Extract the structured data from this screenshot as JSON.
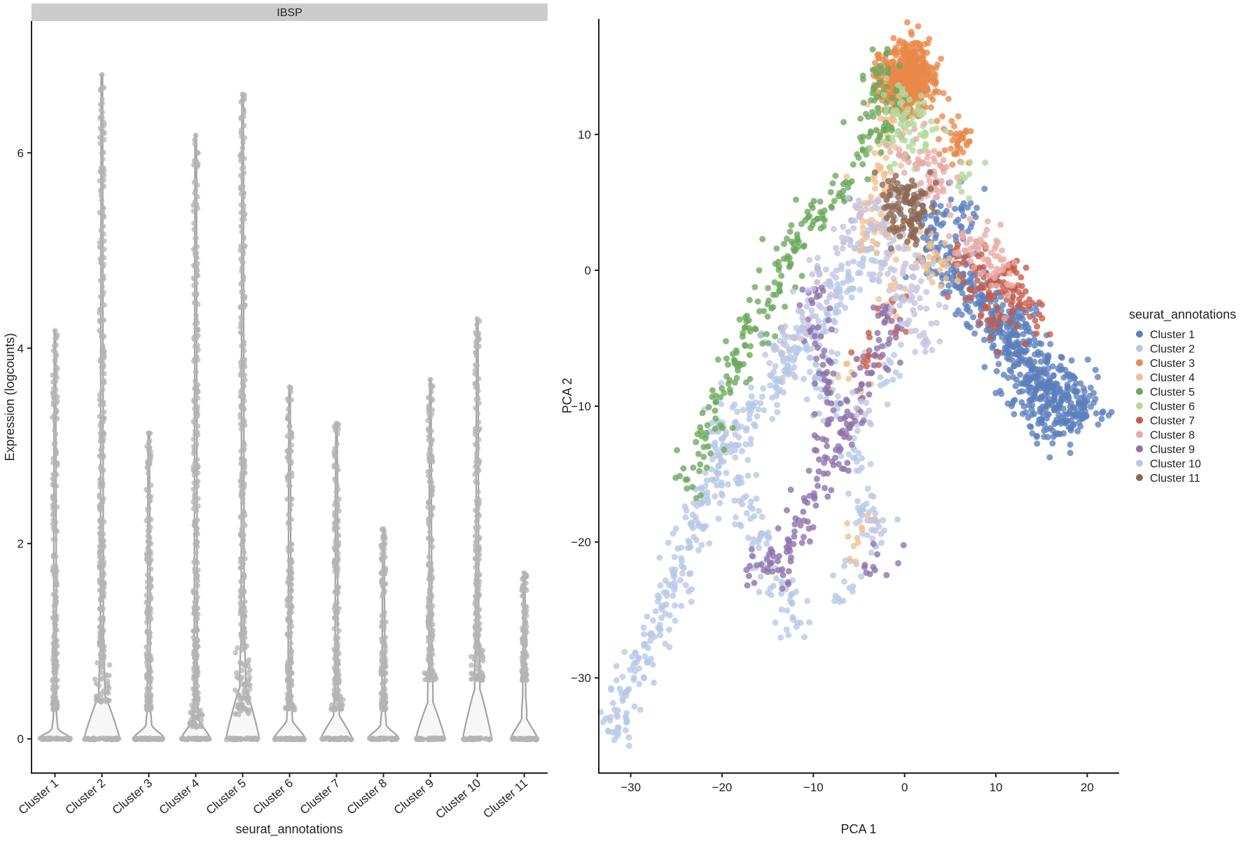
{
  "colors": {
    "violin_fill": "#f7f7f7",
    "violin_stroke": "#a3a3a3",
    "violin_points": "#b4b4b4",
    "strip_bg": "#cccccc"
  },
  "chart_data": [
    {
      "type": "violin",
      "facet_label": "IBSP",
      "xlabel": "seurat_annotations",
      "ylabel": "Expression (logcounts)",
      "ylim": [
        -0.35,
        7.35
      ],
      "yticks": [
        0,
        2,
        4,
        6
      ],
      "categories": [
        "Cluster 1",
        "Cluster 2",
        "Cluster 3",
        "Cluster 4",
        "Cluster 5",
        "Cluster 6",
        "Cluster 7",
        "Cluster 8",
        "Cluster 9",
        "Cluster 10",
        "Cluster 11"
      ],
      "max_values": [
        4.18,
        6.8,
        3.13,
        6.18,
        6.6,
        3.6,
        3.23,
        2.15,
        3.68,
        4.3,
        1.7
      ],
      "min_nonzero": [
        0.3,
        0.38,
        0.3,
        0.12,
        0.25,
        0.3,
        0.3,
        0.3,
        0.6,
        0.6,
        0.6
      ],
      "violin_top": [
        0.2,
        0.8,
        0.26,
        0.36,
        0.95,
        0.34,
        0.44,
        0.26,
        0.68,
        0.92,
        0.38
      ],
      "relative_width": [
        0.7,
        0.8,
        0.7,
        0.65,
        0.75,
        0.7,
        0.7,
        0.7,
        0.65,
        0.65,
        0.6
      ],
      "grid": false,
      "legend": "none"
    },
    {
      "type": "scatter",
      "xlabel": "PCA 1",
      "ylabel": "PCA 2",
      "xlim": [
        -33.5,
        23.5
      ],
      "ylim": [
        -37,
        18.5
      ],
      "xticks": [
        -30,
        -20,
        -10,
        0,
        10,
        20
      ],
      "yticks": [
        -30,
        -20,
        -10,
        0,
        10
      ],
      "tick_labels_x": [
        "−30",
        "−20",
        "−10",
        "0",
        "10",
        "20"
      ],
      "tick_labels_y": [
        "−30",
        "−20",
        "−10",
        "0",
        "10"
      ],
      "grid": false,
      "legend_title": "seurat_annotations",
      "legend_position": "right",
      "series": [
        {
          "name": "Cluster 1",
          "color": "#5b7fbd",
          "points": [
            [
              12.4,
              -6.2
            ],
            [
              13.6,
              -7.0
            ],
            [
              14.7,
              -7.6
            ],
            [
              15.8,
              -8.3
            ],
            [
              16.9,
              -8.8
            ],
            [
              18.0,
              -9.4
            ],
            [
              19.1,
              -9.9
            ],
            [
              10.8,
              -4.6
            ],
            [
              9.6,
              -3.6
            ],
            [
              8.4,
              -2.5
            ],
            [
              7.1,
              -1.4
            ],
            [
              11.5,
              -5.5
            ],
            [
              14.2,
              -9.1
            ],
            [
              16.4,
              -10.3
            ],
            [
              19.8,
              -10.4
            ],
            [
              17.6,
              -11.2
            ],
            [
              15.1,
              -10.5
            ],
            [
              12.9,
              -8.9
            ],
            [
              13.0,
              -4.7
            ],
            [
              11.8,
              -3.6
            ],
            [
              6.0,
              -0.7
            ],
            [
              4.8,
              0.5
            ],
            [
              3.6,
              1.4
            ],
            [
              2.2,
              3.8
            ],
            [
              6.3,
              4.4
            ]
          ]
        },
        {
          "name": "Cluster 2",
          "color": "#b7c8e5",
          "points": [
            [
              -4.0,
              1.5
            ],
            [
              -5.1,
              -0.2
            ],
            [
              -6.3,
              -1.6
            ],
            [
              -7.6,
              -2.9
            ],
            [
              -8.9,
              -4.1
            ],
            [
              -10.1,
              -4.9
            ],
            [
              -11.5,
              -5.8
            ],
            [
              -12.8,
              -7.0
            ],
            [
              -14.2,
              -8.1
            ],
            [
              -15.6,
              -9.3
            ],
            [
              -16.8,
              -10.3
            ],
            [
              -17.9,
              -11.5
            ],
            [
              -19.0,
              -12.8
            ],
            [
              -20.1,
              -14.0
            ],
            [
              -21.1,
              -15.4
            ],
            [
              -22.0,
              -16.9
            ],
            [
              -22.9,
              -18.4
            ],
            [
              -23.7,
              -19.9
            ],
            [
              -24.4,
              -21.4
            ],
            [
              -25.2,
              -23.0
            ],
            [
              -26.1,
              -24.6
            ],
            [
              -27.0,
              -26.3
            ],
            [
              -28.1,
              -27.8
            ],
            [
              -29.1,
              -29.3
            ],
            [
              -30.2,
              -30.8
            ],
            [
              -31.4,
              -32.4
            ],
            [
              -32.0,
              -34.0
            ],
            [
              -18.2,
              -15.2
            ],
            [
              -16.9,
              -17.4
            ],
            [
              -15.8,
              -19.6
            ],
            [
              -14.7,
              -21.7
            ],
            [
              -13.5,
              -23.8
            ],
            [
              -12.2,
              -25.7
            ],
            [
              -20.5,
              -11.2
            ],
            [
              -13.2,
              -5.2
            ],
            [
              -9.7,
              -7.8
            ],
            [
              -8.6,
              -9.5
            ],
            [
              -6.6,
              -22.9
            ],
            [
              -5.4,
              -13.8
            ],
            [
              -3.9,
              -17.8
            ],
            [
              -3.6,
              -19.1
            ],
            [
              -1.5,
              -6.8
            ]
          ]
        },
        {
          "name": "Cluster 3",
          "color": "#e8894a",
          "points": [
            [
              0.2,
              14.2
            ],
            [
              -1.2,
              13.8
            ],
            [
              1.4,
              13.5
            ],
            [
              -0.6,
              15.1
            ],
            [
              0.8,
              15.4
            ],
            [
              -1.8,
              14.6
            ],
            [
              1.9,
              14.8
            ],
            [
              -0.2,
              12.9
            ],
            [
              1.1,
              12.6
            ],
            [
              -1.4,
              12.9
            ],
            [
              0.3,
              15.9
            ],
            [
              2.4,
              13.9
            ],
            [
              5.8,
              9.5
            ]
          ]
        },
        {
          "name": "Cluster 4",
          "color": "#f1c08f",
          "points": [
            [
              -2.6,
              7.6
            ],
            [
              -1.1,
              6.1
            ],
            [
              -3.7,
              5.1
            ],
            [
              -2.1,
              3.8
            ],
            [
              -4.6,
              3.6
            ],
            [
              -0.2,
              2.6
            ],
            [
              -3.0,
              1.9
            ],
            [
              1.6,
              1.1
            ],
            [
              3.2,
              0.7
            ],
            [
              4.6,
              0.3
            ],
            [
              -2.2,
              9.4
            ],
            [
              -1.3,
              11.3
            ],
            [
              -5.8,
              -7.5
            ],
            [
              -5.2,
              -19.7
            ],
            [
              -1.5,
              -2.2
            ]
          ]
        },
        {
          "name": "Cluster 5",
          "color": "#6aa85a",
          "points": [
            [
              -2.5,
              14.8
            ],
            [
              -3.4,
              13.3
            ],
            [
              -2.9,
              11.6
            ],
            [
              -3.7,
              10.1
            ],
            [
              -4.6,
              8.9
            ],
            [
              -6.2,
              6.1
            ],
            [
              -7.7,
              5.1
            ],
            [
              -9.0,
              4.1
            ],
            [
              -10.3,
              3.1
            ],
            [
              -11.6,
              2.1
            ],
            [
              -12.6,
              0.9
            ],
            [
              -13.5,
              -0.4
            ],
            [
              -14.4,
              -1.8
            ],
            [
              -15.4,
              -3.0
            ],
            [
              -16.4,
              -4.3
            ],
            [
              -17.5,
              -5.5
            ],
            [
              -18.6,
              -6.7
            ],
            [
              -19.5,
              -7.8
            ],
            [
              -20.7,
              -9.7
            ],
            [
              -21.6,
              -11.4
            ],
            [
              -22.0,
              -13.0
            ],
            [
              -23.8,
              -15.4
            ],
            [
              -2.0,
              12.3
            ],
            [
              -1.4,
              10.3
            ]
          ]
        },
        {
          "name": "Cluster 6",
          "color": "#b3d89c",
          "points": [
            [
              -0.9,
              11.8
            ],
            [
              0.4,
              10.8
            ],
            [
              1.6,
              11.5
            ],
            [
              -1.7,
              9.1
            ],
            [
              0.9,
              9.3
            ],
            [
              2.3,
              10.1
            ],
            [
              6.6,
              6.8
            ],
            [
              -0.3,
              12.4
            ]
          ]
        },
        {
          "name": "Cluster 7",
          "color": "#c95a46",
          "points": [
            [
              8.2,
              0.2
            ],
            [
              9.4,
              -0.8
            ],
            [
              10.6,
              -1.6
            ],
            [
              11.8,
              -2.3
            ],
            [
              13.1,
              -2.9
            ],
            [
              14.3,
              -3.7
            ],
            [
              7.5,
              -1.5
            ],
            [
              9.0,
              -2.8
            ],
            [
              10.2,
              -3.9
            ],
            [
              6.5,
              0.9
            ],
            [
              -4.0,
              -6.3
            ],
            [
              12.0,
              0.0
            ],
            [
              -1.2,
              -3.0
            ]
          ]
        },
        {
          "name": "Cluster 8",
          "color": "#e8aaa6",
          "points": [
            [
              1.6,
              8.0
            ],
            [
              3.0,
              7.1
            ],
            [
              4.2,
              6.0
            ],
            [
              2.5,
              5.5
            ],
            [
              6.3,
              2.5
            ],
            [
              7.8,
              1.7
            ],
            [
              9.1,
              0.8
            ],
            [
              10.4,
              0.0
            ],
            [
              11.2,
              -1.0
            ],
            [
              -0.6,
              8.5
            ],
            [
              3.3,
              8.0
            ],
            [
              8.8,
              2.6
            ]
          ]
        },
        {
          "name": "Cluster 9",
          "color": "#8c71ab",
          "points": [
            [
              -10.2,
              -2.2
            ],
            [
              -9.5,
              -4.2
            ],
            [
              -9.0,
              -6.3
            ],
            [
              -8.4,
              -8.2
            ],
            [
              -7.8,
              -10.3
            ],
            [
              -8.6,
              -12.5
            ],
            [
              -9.4,
              -14.8
            ],
            [
              -10.4,
              -16.6
            ],
            [
              -11.6,
              -18.4
            ],
            [
              -12.8,
              -19.8
            ],
            [
              -13.9,
              -21.4
            ],
            [
              -15.0,
              -22.2
            ],
            [
              -16.2,
              -21.7
            ],
            [
              -6.0,
              -11.6
            ],
            [
              -4.7,
              -8.4
            ],
            [
              -3.3,
              -7.0
            ],
            [
              -1.5,
              -4.6
            ],
            [
              -2.5,
              -3.2
            ],
            [
              -3.0,
              -20.9
            ],
            [
              -5.6,
              -10.8
            ],
            [
              -7.6,
              -13.8
            ]
          ]
        },
        {
          "name": "Cluster 10",
          "color": "#c5c3df",
          "points": [
            [
              -4.8,
              4.8
            ],
            [
              -3.2,
              3.2
            ],
            [
              -1.6,
              1.9
            ],
            [
              0.1,
              0.5
            ],
            [
              1.8,
              -0.8
            ],
            [
              -0.9,
              -1.9
            ],
            [
              1.1,
              -2.4
            ],
            [
              -2.7,
              -0.3
            ],
            [
              -5.6,
              3.1
            ],
            [
              -6.8,
              1.6
            ],
            [
              -8.2,
              -0.8
            ],
            [
              -10.1,
              -0.3
            ],
            [
              -11.2,
              -3.5
            ],
            [
              -12.7,
              -4.9
            ],
            [
              -14.1,
              -5.8
            ],
            [
              -3.8,
              -18.4
            ],
            [
              -4.3,
              -10.6
            ],
            [
              0.7,
              -4.5
            ],
            [
              2.3,
              -5.0
            ],
            [
              -1.8,
              4.5
            ]
          ]
        },
        {
          "name": "Cluster 11",
          "color": "#8a6853",
          "points": [
            [
              0.0,
              5.4
            ],
            [
              0.9,
              5.0
            ],
            [
              -0.7,
              4.4
            ],
            [
              1.6,
              4.1
            ],
            [
              0.4,
              3.6
            ],
            [
              -0.9,
              3.1
            ],
            [
              1.2,
              3.0
            ],
            [
              -0.3,
              6.1
            ],
            [
              2.0,
              5.7
            ],
            [
              -1.6,
              5.8
            ]
          ]
        }
      ]
    }
  ]
}
